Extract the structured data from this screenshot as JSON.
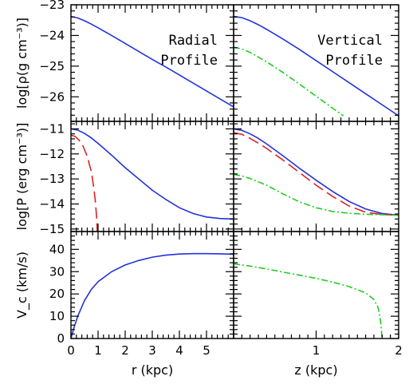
{
  "chart_data": [
    {
      "id": "density-radial",
      "type": "line",
      "annotation": [
        "Radial",
        "Profile"
      ],
      "ylabel": "log[ρ(g cm⁻³)]",
      "xlim": [
        0,
        6
      ],
      "ylim": [
        -26.8,
        -23.0
      ],
      "yticks": [
        -23,
        -24,
        -25,
        -26
      ],
      "series": [
        {
          "color": "#2233dd",
          "style": "solid",
          "x": [
            0,
            0.25,
            0.5,
            0.75,
            1,
            1.5,
            2,
            2.5,
            3,
            3.5,
            4,
            4.5,
            5,
            5.5,
            6
          ],
          "y": [
            -23.38,
            -23.43,
            -23.52,
            -23.63,
            -23.75,
            -24.0,
            -24.26,
            -24.52,
            -24.78,
            -25.03,
            -25.29,
            -25.55,
            -25.81,
            -26.07,
            -26.33
          ]
        }
      ]
    },
    {
      "id": "density-vertical",
      "type": "line",
      "annotation": [
        "Vertical",
        "Profile"
      ],
      "xlim": [
        0,
        2
      ],
      "ylim": [
        -26.8,
        -23.0
      ],
      "series": [
        {
          "color": "#2233dd",
          "style": "solid",
          "x": [
            0,
            0.1,
            0.2,
            0.3,
            0.4,
            0.6,
            0.8,
            1.0,
            1.2,
            1.4,
            1.6,
            1.8,
            2.0
          ],
          "y": [
            -23.38,
            -23.42,
            -23.52,
            -23.65,
            -23.8,
            -24.12,
            -24.46,
            -24.82,
            -25.18,
            -25.54,
            -25.9,
            -26.26,
            -26.62
          ]
        },
        {
          "color": "#22cc22",
          "style": "dashdot",
          "x": [
            0,
            0.1,
            0.2,
            0.4,
            0.6,
            0.8,
            1.0,
            1.2,
            1.33
          ],
          "y": [
            -24.38,
            -24.44,
            -24.55,
            -24.86,
            -25.21,
            -25.59,
            -25.98,
            -26.37,
            -26.62
          ]
        }
      ]
    },
    {
      "id": "pressure-radial",
      "type": "line",
      "ylabel": "log[P (erg cm⁻³)]",
      "xlim": [
        0,
        6
      ],
      "ylim": [
        -15.1,
        -10.7
      ],
      "yticks": [
        -11,
        -12,
        -13,
        -14,
        -15
      ],
      "series": [
        {
          "color": "#2233dd",
          "style": "solid",
          "x": [
            0,
            0.25,
            0.5,
            0.75,
            1,
            1.5,
            2,
            2.5,
            3,
            3.5,
            4,
            4.5,
            5,
            5.5,
            6
          ],
          "y": [
            -11.0,
            -11.05,
            -11.18,
            -11.36,
            -11.58,
            -12.05,
            -12.55,
            -13.0,
            -13.45,
            -13.82,
            -14.15,
            -14.38,
            -14.52,
            -14.58,
            -14.6
          ]
        },
        {
          "color": "#dd2222",
          "style": "dashed",
          "x": [
            0,
            0.15,
            0.3,
            0.45,
            0.6,
            0.75,
            0.85,
            0.9,
            0.93,
            0.95,
            0.97
          ],
          "y": [
            -11.25,
            -11.3,
            -11.45,
            -11.7,
            -12.1,
            -12.7,
            -13.4,
            -13.9,
            -14.3,
            -14.6,
            -15.1
          ]
        }
      ]
    },
    {
      "id": "pressure-vertical",
      "type": "line",
      "xlim": [
        0,
        2
      ],
      "ylim": [
        -15.1,
        -10.7
      ],
      "series": [
        {
          "color": "#2233dd",
          "style": "solid",
          "x": [
            0,
            0.1,
            0.2,
            0.3,
            0.4,
            0.6,
            0.8,
            1.0,
            1.2,
            1.4,
            1.6,
            1.8,
            2.0
          ],
          "y": [
            -11.0,
            -11.06,
            -11.2,
            -11.38,
            -11.6,
            -12.08,
            -12.58,
            -13.05,
            -13.5,
            -13.9,
            -14.2,
            -14.38,
            -14.45
          ]
        },
        {
          "color": "#dd2222",
          "style": "dashed",
          "x": [
            0,
            0.1,
            0.2,
            0.3,
            0.4,
            0.6,
            0.8,
            1.0,
            1.2,
            1.4,
            1.6,
            1.8,
            2.0
          ],
          "y": [
            -11.15,
            -11.22,
            -11.38,
            -11.57,
            -11.78,
            -12.25,
            -12.75,
            -13.25,
            -13.7,
            -14.08,
            -14.33,
            -14.42,
            -14.45
          ]
        },
        {
          "color": "#22cc22",
          "style": "dashdot",
          "x": [
            0,
            0.1,
            0.2,
            0.4,
            0.6,
            0.8,
            1.0,
            1.2,
            1.4,
            1.6,
            1.8,
            2.0
          ],
          "y": [
            -12.82,
            -12.88,
            -12.98,
            -13.25,
            -13.6,
            -13.92,
            -14.15,
            -14.3,
            -14.37,
            -14.41,
            -14.43,
            -14.45
          ]
        }
      ]
    },
    {
      "id": "velocity-radial",
      "type": "line",
      "ylabel": "V_c (km/s)",
      "xlabel": "r (kpc)",
      "xlim": [
        0,
        6
      ],
      "ylim": [
        0,
        48
      ],
      "xticks": [
        0,
        1,
        2,
        3,
        4,
        5
      ],
      "yticks": [
        0,
        10,
        20,
        30,
        40
      ],
      "series": [
        {
          "color": "#2233dd",
          "style": "solid",
          "x": [
            0,
            0.1,
            0.25,
            0.5,
            0.75,
            1,
            1.5,
            2,
            2.5,
            3,
            3.5,
            4,
            4.5,
            5,
            5.5,
            6
          ],
          "y": [
            0,
            4.5,
            10,
            17,
            22,
            25.5,
            30,
            33,
            35,
            36.5,
            37.4,
            37.9,
            38.1,
            38.1,
            38.0,
            37.8
          ]
        }
      ]
    },
    {
      "id": "velocity-vertical",
      "type": "line",
      "xlabel": "z (kpc)",
      "xlim": [
        0,
        2
      ],
      "ylim": [
        0,
        48
      ],
      "xticks": [
        1,
        2
      ],
      "series": [
        {
          "color": "#22cc22",
          "style": "dashdot",
          "x": [
            0,
            0.2,
            0.4,
            0.6,
            0.8,
            1.0,
            1.2,
            1.4,
            1.6,
            1.7,
            1.75,
            1.78,
            1.8
          ],
          "y": [
            33.5,
            32.5,
            31.2,
            29.8,
            28.4,
            27.0,
            25.3,
            23.3,
            20.5,
            17.5,
            14.0,
            8.0,
            0
          ]
        }
      ]
    }
  ]
}
